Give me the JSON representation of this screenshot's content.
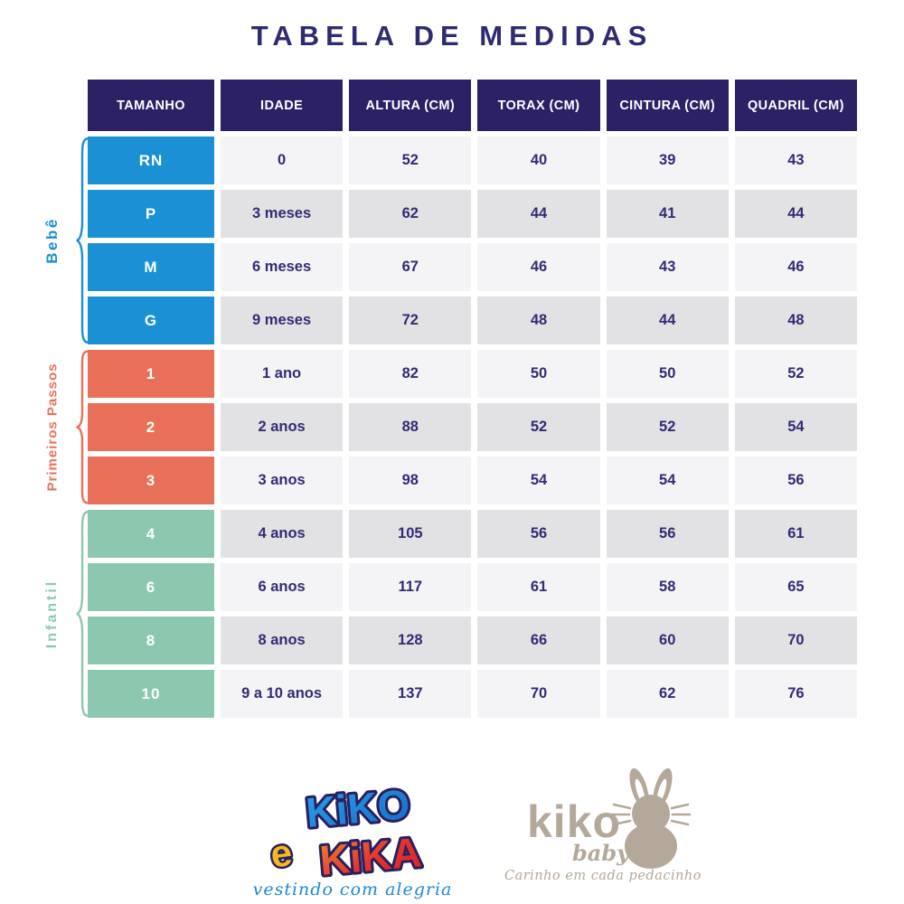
{
  "chart_data": {
    "type": "table",
    "title": "TABELA DE MEDIDAS",
    "columns": [
      "TAMANHO",
      "IDADE",
      "ALTURA (CM)",
      "TORAX (CM)",
      "CINTURA (CM)",
      "QUADRIL (CM)"
    ],
    "row_groups": [
      {
        "label": "Bebê",
        "color": "#1b90d5",
        "rows": [
          [
            "RN",
            "0",
            "52",
            "40",
            "39",
            "43"
          ],
          [
            "P",
            "3 meses",
            "62",
            "44",
            "41",
            "44"
          ],
          [
            "M",
            "6 meses",
            "67",
            "46",
            "43",
            "46"
          ],
          [
            "G",
            "9 meses",
            "72",
            "48",
            "44",
            "48"
          ]
        ]
      },
      {
        "label": "Primeiros Passos",
        "color": "#e87059",
        "rows": [
          [
            "1",
            "1 ano",
            "82",
            "50",
            "50",
            "52"
          ],
          [
            "2",
            "2 anos",
            "88",
            "52",
            "52",
            "54"
          ],
          [
            "3",
            "3 anos",
            "98",
            "54",
            "54",
            "56"
          ]
        ]
      },
      {
        "label": "Infantil",
        "color": "#8cc8b0",
        "rows": [
          [
            "4",
            "4 anos",
            "105",
            "56",
            "56",
            "61"
          ],
          [
            "6",
            "6 anos",
            "117",
            "61",
            "58",
            "65"
          ],
          [
            "8",
            "8 anos",
            "128",
            "66",
            "60",
            "70"
          ],
          [
            "10",
            "9 a 10 anos",
            "137",
            "70",
            "62",
            "76"
          ]
        ]
      }
    ]
  },
  "logos": {
    "kiko_kika": {
      "word1": "KiKO",
      "conj": "e",
      "word2": "KiKA",
      "tagline": "vestindo com alegria"
    },
    "kiko_baby": {
      "name": "kiko",
      "sub": "baby",
      "tagline": "Carinho em cada pedacinho"
    }
  },
  "colors": {
    "header_bg": "#2b2164",
    "title_navy": "#2e2b70",
    "cell_text_navy": "#322c74",
    "row_light": "#f4f4f6",
    "row_dark": "#e2e2e4",
    "bebe_blue": "#1b90d5",
    "passos_coral": "#e87059",
    "infantil_mint": "#8cc8b0",
    "logo_blue": "#1d87d9",
    "logo_outline_navy": "#29205f",
    "logo_red": "#e5332e",
    "logo_orange": "#f08a2e",
    "logo_yellow": "#f5b91e",
    "taupe": "#b4a89b"
  }
}
